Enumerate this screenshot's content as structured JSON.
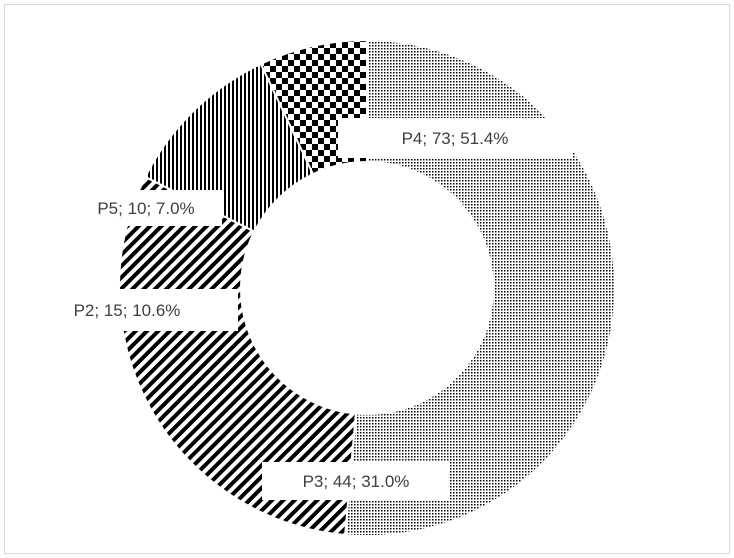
{
  "chart_data": {
    "type": "pie",
    "variant": "doughnut",
    "title": "",
    "start_angle_deg": 0,
    "direction": "clockwise",
    "slices": [
      {
        "name": "P4",
        "value": 73,
        "percent": "51.4%",
        "label": "P4; 73; 51.4%",
        "pattern": "fine-dots"
      },
      {
        "name": "P3",
        "value": 44,
        "percent": "31.0%",
        "label": "P3; 44; 31.0%",
        "pattern": "diagonal-stripes"
      },
      {
        "name": "P2",
        "value": 15,
        "percent": "10.6%",
        "label": "P2; 15; 10.6%",
        "pattern": "vertical-stripes"
      },
      {
        "name": "P5",
        "value": 10,
        "percent": "7.0%",
        "label": "P5; 10; 7.0%",
        "pattern": "checkerboard"
      }
    ],
    "colors": {
      "ink": "#000000",
      "background": "#ffffff",
      "label_text": "#404040",
      "border": "#d9d9d9"
    },
    "legend": "none"
  }
}
